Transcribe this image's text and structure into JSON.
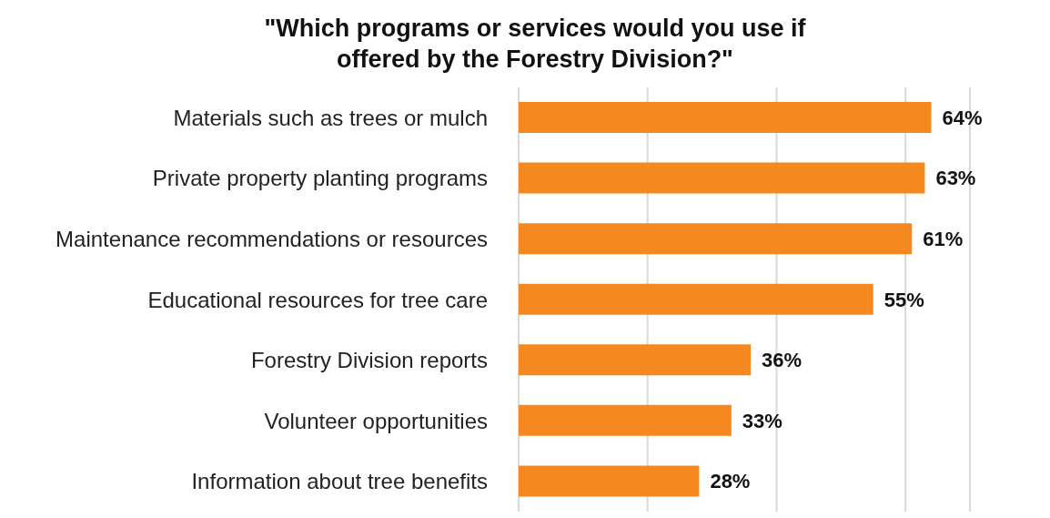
{
  "chart_data": {
    "type": "bar",
    "orientation": "horizontal",
    "title": "\"Which programs or services would you use if offered by the Forestry Division?\"",
    "categories": [
      "Materials such as trees or mulch",
      "Private property planting programs",
      "Maintenance recommendations or resources",
      "Educational resources for tree care",
      "Forestry Division reports",
      "Volunteer opportunities",
      "Information about tree benefits"
    ],
    "values": [
      64,
      63,
      61,
      55,
      36,
      33,
      28
    ],
    "value_labels": [
      "64%",
      "63%",
      "61%",
      "55%",
      "36%",
      "33%",
      "28%"
    ],
    "color": "#f5891f",
    "xlim": [
      0,
      70
    ],
    "xticks": [
      {
        "value": 0,
        "label": null
      },
      {
        "value": 20,
        "label": null
      },
      {
        "value": 40,
        "label": null
      },
      {
        "value": 60,
        "label": null
      }
    ],
    "grid": "x"
  }
}
